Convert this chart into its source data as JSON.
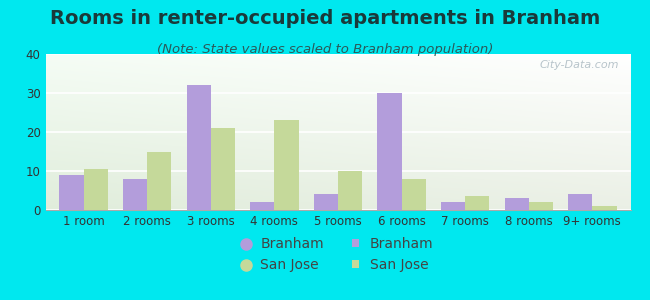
{
  "title": "Rooms in renter-occupied apartments in Branham",
  "subtitle": "(Note: State values scaled to Branham population)",
  "categories": [
    "1 room",
    "2 rooms",
    "3 rooms",
    "4 rooms",
    "5 rooms",
    "6 rooms",
    "7 rooms",
    "8 rooms",
    "9+ rooms"
  ],
  "branham_values": [
    9,
    8,
    32,
    2,
    4,
    30,
    2,
    3,
    4
  ],
  "sanjose_values": [
    10.5,
    15,
    21,
    23,
    10,
    8,
    3.5,
    2,
    1
  ],
  "branham_color": "#b39ddb",
  "sanjose_color": "#c5d99a",
  "background_outer": "#00e8ef",
  "ylim": [
    0,
    40
  ],
  "yticks": [
    0,
    10,
    20,
    30,
    40
  ],
  "bar_width": 0.38,
  "title_fontsize": 14,
  "subtitle_fontsize": 9.5,
  "legend_fontsize": 10,
  "tick_fontsize": 8.5,
  "title_color": "#1a3a3a",
  "subtitle_color": "#2a5a5a",
  "watermark_text": "City-Data.com",
  "watermark_color": "#b0bec5"
}
